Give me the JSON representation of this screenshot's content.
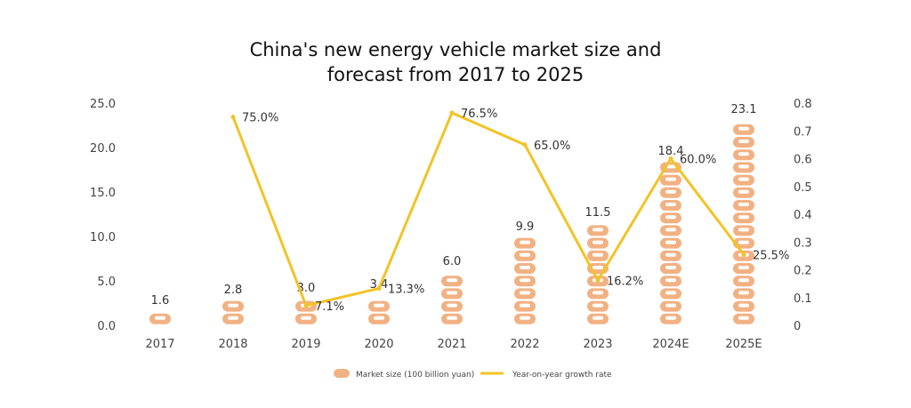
{
  "chart_data": {
    "type": "bar+line",
    "title_lines": [
      "China's new energy vehicle market size and",
      "forecast from 2017 to 2025"
    ],
    "categories": [
      "2017",
      "2018",
      "2019",
      "2020",
      "2021",
      "2022",
      "2023",
      "2024E",
      "2025E"
    ],
    "series": [
      {
        "name": "Market size (100 billion yuan)",
        "type": "bar",
        "axis": "left",
        "values": [
          1.6,
          2.8,
          3.0,
          3.4,
          6.0,
          9.9,
          11.5,
          18.4,
          23.1
        ],
        "labels": [
          "1.6",
          "2.8",
          "3.0",
          "3.4",
          "6.0",
          "9.9",
          "11.5",
          "18.4",
          "23.1"
        ],
        "color": "#f2b183"
      },
      {
        "name": "Year-on-year growth rate",
        "type": "line",
        "axis": "right",
        "values": [
          null,
          0.75,
          0.071,
          0.133,
          0.765,
          0.65,
          0.162,
          0.6,
          0.255
        ],
        "labels": [
          "",
          "75.0%",
          "7.1%",
          "13.3%",
          "76.5%",
          "65.0%",
          "16.2%",
          "60.0%",
          "25.5%"
        ],
        "color": "#f3c326"
      }
    ],
    "y_left": {
      "min": 0,
      "max": 25,
      "ticks": [
        "0.0",
        "5.0",
        "10.0",
        "15.0",
        "20.0",
        "25.0"
      ]
    },
    "y_right": {
      "min": 0,
      "max": 0.8,
      "ticks": [
        "0",
        "0.1",
        "0.2",
        "0.3",
        "0.4",
        "0.5",
        "0.6",
        "0.7",
        "0.8"
      ]
    },
    "grid": false,
    "legend_position": "bottom"
  }
}
